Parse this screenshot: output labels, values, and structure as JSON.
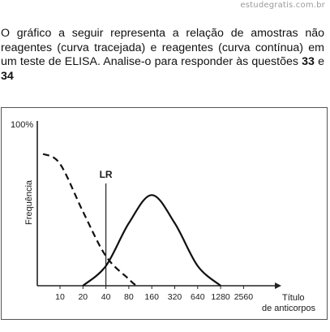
{
  "watermark": "estudegratis.com.br",
  "question": {
    "text_before": "O gráfico a seguir representa a relação de amostras não reagentes (curva tracejada) e reagentes (curva contínua) em um teste de ELISA. Analise-o para responder às questões ",
    "q1": "33",
    "connector": " e ",
    "q2": "34"
  },
  "chart_data": {
    "type": "line",
    "ylabel": "Frequência",
    "y_top_label": "100%",
    "xlabel_line1": "Título",
    "xlabel_line2": "de anticorpos",
    "categories": [
      "10",
      "20",
      "40",
      "80",
      "160",
      "320",
      "640",
      "1280",
      "2560"
    ],
    "series": [
      {
        "style": "dashed",
        "x": [
          6,
          10,
          20,
          40,
          80,
          100
        ],
        "y": [
          0.8,
          0.74,
          0.45,
          0.18,
          0.04,
          0.0
        ]
      },
      {
        "style": "solid",
        "x": [
          20,
          40,
          80,
          160,
          320,
          640,
          1280
        ],
        "y": [
          0.0,
          0.12,
          0.38,
          0.55,
          0.38,
          0.12,
          0.0
        ]
      }
    ],
    "marker_label": "LR",
    "marker_x": 40,
    "grid": false
  }
}
